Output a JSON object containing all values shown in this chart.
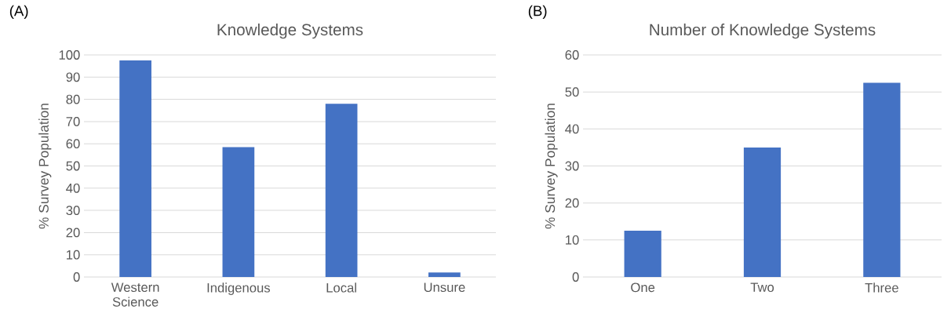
{
  "chart_data": [
    {
      "type": "bar",
      "title": "Knowledge Systems",
      "ylabel": "% Survey Population",
      "categories": [
        "Western Science",
        "Indigenous",
        "Local",
        "Unsure"
      ],
      "values": [
        97.5,
        58.5,
        78,
        2
      ],
      "color": "#4472c4",
      "ylim": [
        0,
        100
      ],
      "yticks": [
        0,
        10,
        20,
        30,
        40,
        50,
        60,
        70,
        80,
        90,
        100
      ],
      "grid": "y",
      "annotations": [
        "(A)"
      ]
    },
    {
      "type": "bar",
      "title": "Number of Knowledge Systems",
      "ylabel": "% Survey Population",
      "categories": [
        "One",
        "Two",
        "Three"
      ],
      "values": [
        12.5,
        35,
        52.5
      ],
      "color": "#4472c4",
      "ylim": [
        0,
        60
      ],
      "yticks": [
        0,
        10,
        20,
        30,
        40,
        50,
        60
      ],
      "grid": "y",
      "annotations": [
        "(B)"
      ]
    }
  ]
}
